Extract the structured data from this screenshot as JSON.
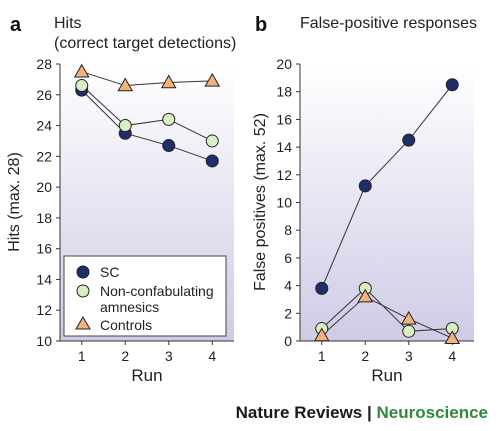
{
  "colors": {
    "sc": "#1f2d6b",
    "non_confabulating": "#d9efc3",
    "controls": "#f2b27a",
    "plot_bg_top": "#ffffff",
    "plot_bg_bottom": "#cfcbe6"
  },
  "chart_data": [
    {
      "type": "line",
      "panel_letter": "a",
      "title": "Hits",
      "subtitle": "(correct target detections)",
      "xlabel": "Run",
      "ylabel": "Hits (max. 28)",
      "x": [
        1,
        2,
        3,
        4
      ],
      "xlim": [
        0.5,
        4.5
      ],
      "ylim": [
        10,
        28
      ],
      "yticks": [
        10,
        12,
        14,
        16,
        18,
        20,
        22,
        24,
        26,
        28
      ],
      "legend_position": "bottom-left",
      "series": [
        {
          "name": "SC",
          "marker": "circle",
          "color_key": "sc",
          "values": [
            26.3,
            23.5,
            22.7,
            21.7
          ]
        },
        {
          "name": "Non-confabulating amnesics",
          "marker": "circle",
          "color_key": "non_confabulating",
          "values": [
            26.6,
            24.0,
            24.4,
            23.0
          ]
        },
        {
          "name": "Controls",
          "marker": "triangle",
          "color_key": "controls",
          "values": [
            27.5,
            26.6,
            26.8,
            26.9
          ]
        }
      ],
      "legend_lines": [
        [
          "SC"
        ],
        [
          "Non-confabulating",
          "amnesics"
        ],
        [
          "Controls"
        ]
      ]
    },
    {
      "type": "line",
      "panel_letter": "b",
      "title": "False-positive responses",
      "xlabel": "Run",
      "ylabel": "False positives (max. 52)",
      "x": [
        1,
        2,
        3,
        4
      ],
      "xlim": [
        0.5,
        4.5
      ],
      "ylim": [
        0,
        20
      ],
      "yticks": [
        0,
        2,
        4,
        6,
        8,
        10,
        12,
        14,
        16,
        18,
        20
      ],
      "series": [
        {
          "name": "SC",
          "marker": "circle",
          "color_key": "sc",
          "values": [
            3.8,
            11.2,
            14.5,
            18.5
          ]
        },
        {
          "name": "Non-confabulating amnesics",
          "marker": "circle",
          "color_key": "non_confabulating",
          "values": [
            0.9,
            3.8,
            0.7,
            0.9
          ]
        },
        {
          "name": "Controls",
          "marker": "triangle",
          "color_key": "controls",
          "values": [
            0.4,
            3.2,
            1.6,
            0.2
          ]
        }
      ]
    }
  ],
  "footer": {
    "journal": "Nature Reviews",
    "separator": "|",
    "section": "Neuroscience"
  }
}
